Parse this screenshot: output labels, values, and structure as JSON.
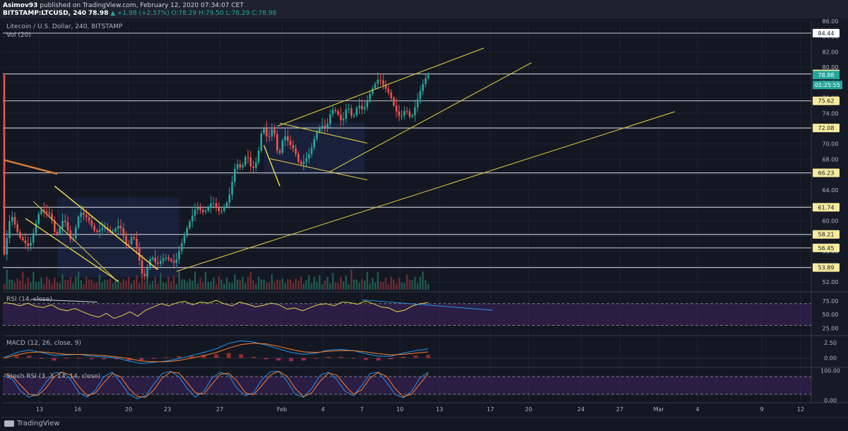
{
  "header": {
    "author": "Asimov93",
    "published": "published on TradingView.com, February 12, 2020 07:34:07 CET",
    "ticker": "BITSTAMP:LTCUSD, 240",
    "last": "78.98",
    "change": "▲ +1.98 (+2.57%)",
    "ohlc": "O:78.29 H:79.50 L:78.29 C:78.98"
  },
  "chart_data": [
    {
      "type": "candlestick",
      "title": "Litecoin / U.S. Dollar, 240, BITSTAMP",
      "volume_label": "Vol (20)",
      "ylim": [
        51,
        86
      ],
      "y_ticks": [
        52,
        54,
        56,
        58,
        60,
        62,
        64,
        66,
        68,
        70,
        72,
        74,
        76,
        78,
        80,
        82,
        84,
        86
      ],
      "horizontal_levels": [
        84.44,
        79.13,
        75.62,
        72.08,
        66.23,
        61.74,
        58.21,
        56.45,
        53.89
      ],
      "price_tags": {
        "last": "78.98",
        "countdown": "01:25:55"
      },
      "price_path": [
        [
          0,
          54.5
        ],
        [
          3,
          61
        ],
        [
          6,
          58
        ],
        [
          10,
          56.5
        ],
        [
          14,
          61.5
        ],
        [
          18,
          60.8
        ],
        [
          20,
          57.8
        ],
        [
          23,
          60.4
        ],
        [
          26,
          57
        ],
        [
          29,
          61.2
        ],
        [
          32,
          60.3
        ],
        [
          35,
          58.4
        ],
        [
          38,
          59.2
        ],
        [
          41,
          58.4
        ],
        [
          44,
          59.5
        ],
        [
          47,
          56.5
        ],
        [
          49,
          58.3
        ],
        [
          51,
          55.7
        ],
        [
          53,
          52.2
        ],
        [
          56,
          55.5
        ],
        [
          58,
          54.2
        ],
        [
          61,
          55.3
        ],
        [
          65,
          54.4
        ],
        [
          67,
          56.6
        ],
        [
          70,
          59.5
        ],
        [
          73,
          61.8
        ],
        [
          76,
          61
        ],
        [
          79,
          62.5
        ],
        [
          82,
          61
        ],
        [
          85,
          62.6
        ],
        [
          86,
          64.2
        ],
        [
          88,
          67.6
        ],
        [
          90,
          66.7
        ],
        [
          92,
          68.8
        ],
        [
          94,
          66.5
        ],
        [
          96,
          68
        ],
        [
          98,
          72.5
        ],
        [
          100,
          70.5
        ],
        [
          102,
          72.4
        ],
        [
          104,
          68
        ],
        [
          106,
          71.3
        ],
        [
          108,
          70.1
        ],
        [
          110,
          69.2
        ],
        [
          112,
          67.2
        ],
        [
          114,
          67.8
        ],
        [
          116,
          69
        ],
        [
          118,
          71.2
        ],
        [
          120,
          72.5
        ],
        [
          122,
          72
        ],
        [
          124,
          74.5
        ],
        [
          126,
          74.2
        ],
        [
          128,
          72.7
        ],
        [
          130,
          75.1
        ],
        [
          132,
          73.2
        ],
        [
          134,
          75.2
        ],
        [
          136,
          74.3
        ],
        [
          138,
          76.2
        ],
        [
          140,
          77.6
        ],
        [
          142,
          78.6
        ],
        [
          144,
          77.4
        ],
        [
          146,
          76.5
        ],
        [
          148,
          74.5
        ],
        [
          150,
          73.4
        ],
        [
          152,
          74.6
        ],
        [
          154,
          73.2
        ],
        [
          156,
          75.3
        ],
        [
          158,
          77.4
        ],
        [
          160,
          78.98
        ]
      ],
      "volume_profile": [
        3,
        9,
        4,
        5,
        3,
        6,
        4,
        7,
        3,
        5,
        4,
        8,
        3,
        4,
        5,
        3,
        6,
        4,
        3,
        5,
        4,
        3,
        6,
        5,
        4,
        7,
        3,
        5,
        9,
        4,
        3,
        6,
        4,
        5,
        3,
        4,
        7,
        3,
        5,
        4,
        6,
        3,
        4,
        5,
        3,
        6,
        4,
        5,
        3,
        4,
        8,
        3,
        5,
        4,
        6,
        3,
        4,
        5,
        3,
        7,
        4,
        3,
        5,
        4,
        6
      ]
    },
    {
      "type": "line",
      "title": "RSI (14, close)",
      "ylim": [
        15,
        88
      ],
      "y_ticks": [
        "75.00",
        "50.00",
        "25.00"
      ],
      "bands": [
        70,
        30
      ],
      "values": [
        72,
        70,
        66,
        71,
        65,
        63,
        68,
        60,
        57,
        61,
        55,
        49,
        45,
        52,
        43,
        48,
        55,
        47,
        58,
        64,
        70,
        66,
        72,
        74,
        68,
        73,
        71,
        76,
        70,
        66,
        73,
        69,
        64,
        67,
        71,
        68,
        60,
        62,
        57,
        63,
        68,
        70,
        66,
        73,
        72,
        69,
        75,
        70,
        64,
        62,
        55,
        58,
        66,
        70,
        72
      ]
    },
    {
      "type": "line",
      "title": "MACD (12, 26, close, 9)",
      "ylim": [
        -1.3,
        3.3
      ],
      "y_ticks": [
        "2.50",
        "0.00"
      ],
      "series": [
        {
          "values": [
            0.1,
            0.9,
            1.3,
            0.9,
            0.4,
            0.5,
            0.6,
            0.3,
            0.2,
            0.0,
            -0.5,
            -0.9,
            -0.7,
            -0.5,
            -0.1,
            0.4,
            0.9,
            1.5,
            2.4,
            2.8,
            2.6,
            2.1,
            1.5,
            0.9,
            0.6,
            0.8,
            1.3,
            1.4,
            1.2,
            0.7,
            0.3,
            0.3,
            0.8,
            1.2,
            1.5
          ]
        },
        {
          "values": [
            0.0,
            0.5,
            0.9,
            1.0,
            0.8,
            0.6,
            0.6,
            0.5,
            0.4,
            0.2,
            -0.1,
            -0.5,
            -0.6,
            -0.6,
            -0.4,
            0.0,
            0.4,
            0.9,
            1.6,
            2.2,
            2.4,
            2.3,
            1.9,
            1.4,
            1.0,
            0.9,
            1.1,
            1.2,
            1.2,
            1.0,
            0.7,
            0.5,
            0.6,
            0.8,
            1.0
          ]
        }
      ]
    },
    {
      "type": "line",
      "title": "Stoch RSI (3, 3, 14, 14, close)",
      "ylim": [
        -4,
        104
      ],
      "y_ticks": [
        "100.00",
        "0.00"
      ],
      "bands": [
        80,
        20
      ],
      "series": [
        {
          "values": [
            85,
            70,
            30,
            10,
            20,
            60,
            92,
            95,
            70,
            25,
            10,
            35,
            80,
            95,
            60,
            20,
            5,
            15,
            55,
            90,
            98,
            80,
            40,
            10,
            30,
            75,
            95,
            85,
            40,
            15,
            25,
            70,
            96,
            98,
            65,
            20,
            10,
            40,
            85,
            95,
            70,
            30,
            15,
            50,
            90,
            95,
            60,
            20,
            8,
            30,
            75,
            95
          ]
        },
        {
          "values": [
            90,
            80,
            50,
            20,
            15,
            40,
            80,
            95,
            85,
            45,
            15,
            25,
            60,
            90,
            80,
            40,
            12,
            10,
            35,
            75,
            95,
            92,
            60,
            25,
            20,
            55,
            88,
            92,
            65,
            25,
            18,
            50,
            85,
            98,
            82,
            40,
            12,
            25,
            65,
            92,
            85,
            50,
            20,
            35,
            75,
            94,
            80,
            40,
            12,
            20,
            55,
            90
          ]
        }
      ]
    }
  ],
  "x_axis_labels": [
    "13",
    "16",
    "20",
    "23",
    "27",
    "Feb",
    "4",
    "7",
    "10",
    "13",
    "17",
    "20",
    "24",
    "27",
    "Mar",
    "4",
    "9",
    "12"
  ],
  "colors": {
    "background": "#131722",
    "up": "#26a69a",
    "down": "#ef5350",
    "level": "#d1d4dc",
    "trend": "#e5d24a",
    "highlight": "#f6eb9e",
    "oscillator_fill": "#3f2260",
    "macd": "#2196f3",
    "signal": "#ff7f27"
  },
  "branding": {
    "logo_text": "TradingView"
  }
}
